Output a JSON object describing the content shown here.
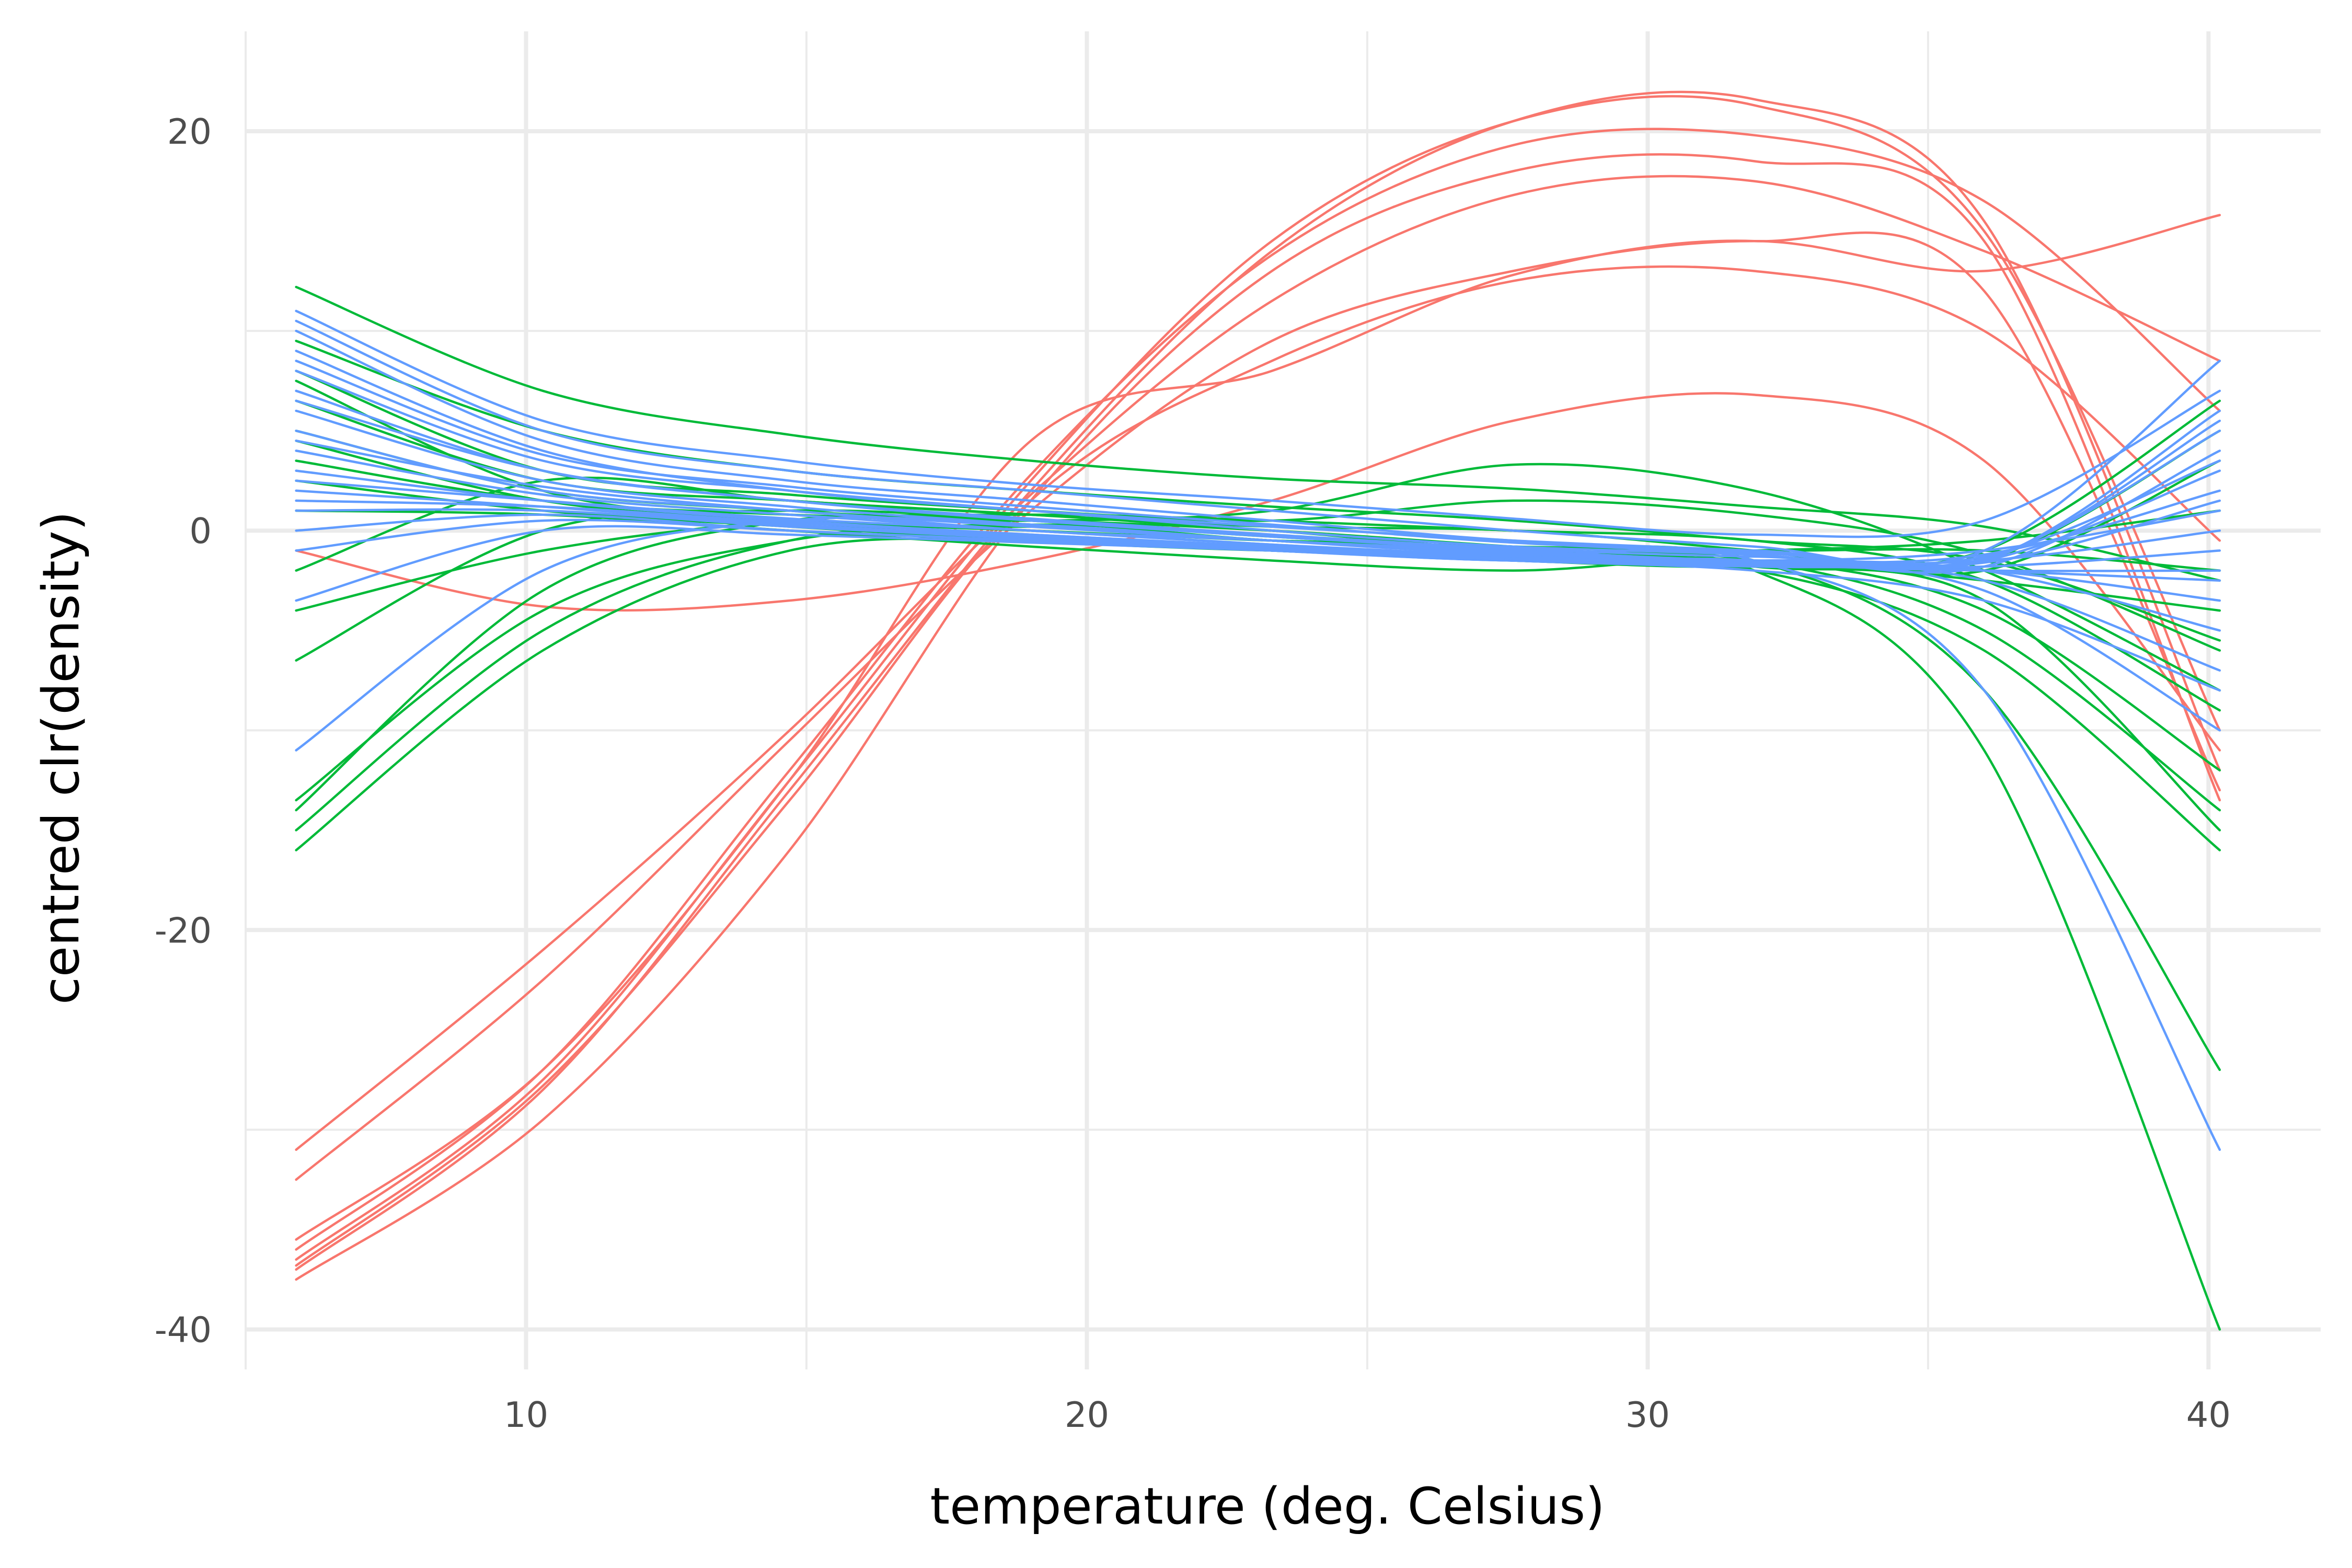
{
  "chart_data": {
    "type": "line",
    "title": "",
    "xlabel": "temperature (deg. Celsius)",
    "ylabel": "centred clr(density)",
    "xlim": [
      5,
      42
    ],
    "ylim": [
      -42,
      25
    ],
    "x_ticks": [
      10,
      20,
      30,
      40
    ],
    "y_ticks": [
      -40,
      -20,
      0,
      20
    ],
    "x_tick_labels": [
      "10",
      "20",
      "30",
      "40"
    ],
    "y_tick_labels": [
      "-40",
      "-20",
      "0",
      "20"
    ],
    "grid": true,
    "legend": "none",
    "x": [
      5.9,
      10.3,
      14.7,
      19.0,
      23.3,
      27.6,
      31.9,
      36.0,
      40.2
    ],
    "series": [
      {
        "group": "red",
        "color": "#F8766D",
        "values": [
          -37.0,
          -28.0,
          -13.0,
          2.0,
          14.0,
          20.5,
          21.6,
          15.5,
          -12.0
        ]
      },
      {
        "group": "red",
        "color": "#F8766D",
        "values": [
          -36.5,
          -27.5,
          -12.5,
          2.5,
          14.5,
          20.5,
          21.3,
          15.0,
          -10.0
        ]
      },
      {
        "group": "red",
        "color": "#F8766D",
        "values": [
          -36.0,
          -27.0,
          -12.0,
          2.8,
          13.8,
          19.3,
          19.8,
          16.5,
          6.0
        ]
      },
      {
        "group": "red",
        "color": "#F8766D",
        "values": [
          -37.5,
          -29.5,
          -16.0,
          1.5,
          13.0,
          18.0,
          18.5,
          14.5,
          -13.5
        ]
      },
      {
        "group": "red",
        "color": "#F8766D",
        "values": [
          -31.0,
          -21.0,
          -10.0,
          1.8,
          11.5,
          16.8,
          17.5,
          14.0,
          8.5
        ]
      },
      {
        "group": "red",
        "color": "#F8766D",
        "values": [
          -32.5,
          -22.5,
          -10.5,
          1.0,
          9.5,
          13.0,
          14.5,
          13.0,
          15.8
        ]
      },
      {
        "group": "red",
        "color": "#F8766D",
        "values": [
          -36.8,
          -27.8,
          -13.5,
          1.5,
          8.5,
          12.5,
          13.0,
          10.0,
          -0.5
        ]
      },
      {
        "group": "red",
        "color": "#F8766D",
        "values": [
          -35.5,
          -27.0,
          -12.5,
          4.5,
          8.0,
          12.8,
          14.5,
          12.0,
          -13.0
        ]
      },
      {
        "group": "red",
        "color": "#F8766D",
        "values": [
          -1.0,
          -3.8,
          -3.5,
          -1.5,
          1.5,
          5.5,
          6.8,
          3.5,
          -11.0
        ]
      },
      {
        "group": "green",
        "color": "#00BA38",
        "values": [
          12.2,
          7.0,
          4.8,
          3.5,
          2.6,
          2.1,
          1.2,
          0.2,
          -2.5
        ]
      },
      {
        "group": "green",
        "color": "#00BA38",
        "values": [
          9.5,
          5.0,
          3.0,
          2.0,
          1.2,
          0.5,
          -0.5,
          -1.5,
          -5.5
        ]
      },
      {
        "group": "green",
        "color": "#00BA38",
        "values": [
          8.0,
          3.0,
          1.8,
          1.0,
          0.5,
          1.5,
          0.8,
          -1.2,
          -6.0
        ]
      },
      {
        "group": "green",
        "color": "#00BA38",
        "values": [
          6.5,
          2.5,
          1.5,
          0.8,
          0.2,
          0.0,
          -1.0,
          -2.0,
          3.5
        ]
      },
      {
        "group": "green",
        "color": "#00BA38",
        "values": [
          5.0,
          2.0,
          1.0,
          0.3,
          -0.5,
          -1.0,
          -1.5,
          -1.5,
          5.0
        ]
      },
      {
        "group": "green",
        "color": "#00BA38",
        "values": [
          3.5,
          1.5,
          0.8,
          0.5,
          1.0,
          3.3,
          2.0,
          -2.0,
          -8.0
        ]
      },
      {
        "group": "green",
        "color": "#00BA38",
        "values": [
          2.5,
          1.0,
          0.2,
          -0.5,
          -1.0,
          -1.5,
          -1.8,
          -1.0,
          6.5
        ]
      },
      {
        "group": "green",
        "color": "#00BA38",
        "values": [
          1.0,
          0.8,
          0.0,
          -0.8,
          -1.5,
          -2.0,
          -1.5,
          -4.0,
          -12.0
        ]
      },
      {
        "group": "green",
        "color": "#00BA38",
        "values": [
          -2.0,
          2.5,
          1.5,
          0.8,
          0.0,
          -1.0,
          -1.5,
          -2.5,
          -4.0
        ]
      },
      {
        "group": "green",
        "color": "#00BA38",
        "values": [
          -6.5,
          0.0,
          1.0,
          0.5,
          -0.5,
          -1.0,
          -1.8,
          -3.5,
          -15.0
        ]
      },
      {
        "group": "green",
        "color": "#00BA38",
        "values": [
          -14.0,
          -3.0,
          0.5,
          0.5,
          0.0,
          -0.8,
          -1.5,
          -8.0,
          -27.0
        ]
      },
      {
        "group": "green",
        "color": "#00BA38",
        "values": [
          -15.0,
          -5.0,
          -0.5,
          0.2,
          -0.5,
          -1.2,
          -2.0,
          -11.0,
          -40.0
        ]
      },
      {
        "group": "green",
        "color": "#00BA38",
        "values": [
          -16.0,
          -6.0,
          -1.0,
          -0.5,
          -1.0,
          -1.5,
          -2.0,
          -6.0,
          -16.0
        ]
      },
      {
        "group": "green",
        "color": "#00BA38",
        "values": [
          -13.5,
          -4.0,
          -0.5,
          0.3,
          -0.3,
          -1.0,
          -1.5,
          -5.0,
          -14.0
        ]
      },
      {
        "group": "green",
        "color": "#00BA38",
        "values": [
          7.5,
          2.0,
          0.5,
          -0.5,
          -1.0,
          -1.2,
          -1.0,
          -0.5,
          1.0
        ]
      },
      {
        "group": "green",
        "color": "#00BA38",
        "values": [
          4.5,
          1.5,
          0.5,
          0.0,
          -0.5,
          -0.8,
          -1.0,
          -1.0,
          -2.0
        ]
      },
      {
        "group": "green",
        "color": "#00BA38",
        "values": [
          -4.0,
          -1.0,
          0.5,
          0.8,
          0.5,
          0.0,
          -0.5,
          -2.5,
          -9.0
        ]
      },
      {
        "group": "blue",
        "color": "#619CFF",
        "values": [
          11.0,
          5.5,
          3.5,
          2.3,
          1.5,
          0.6,
          -0.2,
          0.5,
          7.0
        ]
      },
      {
        "group": "blue",
        "color": "#619CFF",
        "values": [
          10.0,
          4.5,
          2.5,
          1.5,
          0.5,
          -0.5,
          -1.0,
          -1.0,
          8.5
        ]
      },
      {
        "group": "blue",
        "color": "#619CFF",
        "values": [
          9.0,
          4.0,
          2.0,
          1.0,
          0.2,
          -0.5,
          -1.0,
          -1.5,
          5.5
        ]
      },
      {
        "group": "blue",
        "color": "#619CFF",
        "values": [
          8.0,
          3.5,
          2.0,
          1.0,
          0.0,
          -0.8,
          -1.2,
          -1.8,
          4.0
        ]
      },
      {
        "group": "blue",
        "color": "#619CFF",
        "values": [
          7.0,
          3.0,
          1.5,
          0.5,
          -0.3,
          -1.0,
          -1.5,
          -1.5,
          3.0
        ]
      },
      {
        "group": "blue",
        "color": "#619CFF",
        "values": [
          6.0,
          2.5,
          1.2,
          0.3,
          -0.5,
          -1.0,
          -1.5,
          -1.2,
          2.0
        ]
      },
      {
        "group": "blue",
        "color": "#619CFF",
        "values": [
          5.0,
          2.0,
          1.0,
          0.0,
          -0.5,
          -1.2,
          -1.5,
          -1.0,
          1.0
        ]
      },
      {
        "group": "blue",
        "color": "#619CFF",
        "values": [
          4.0,
          1.8,
          0.8,
          0.0,
          -0.7,
          -1.3,
          -1.6,
          -1.5,
          0.0
        ]
      },
      {
        "group": "blue",
        "color": "#619CFF",
        "values": [
          3.0,
          1.5,
          0.5,
          -0.2,
          -0.8,
          -1.4,
          -1.7,
          -2.0,
          -2.0
        ]
      },
      {
        "group": "blue",
        "color": "#619CFF",
        "values": [
          2.0,
          1.2,
          0.3,
          -0.3,
          -0.9,
          -1.5,
          -1.8,
          -2.0,
          -3.5
        ]
      },
      {
        "group": "blue",
        "color": "#619CFF",
        "values": [
          1.0,
          1.0,
          0.2,
          -0.4,
          -1.0,
          -1.5,
          -1.5,
          -2.0,
          -5.0
        ]
      },
      {
        "group": "blue",
        "color": "#619CFF",
        "values": [
          0.0,
          0.8,
          0.0,
          -0.5,
          -1.0,
          -1.5,
          -1.5,
          -2.5,
          -7.0
        ]
      },
      {
        "group": "blue",
        "color": "#619CFF",
        "values": [
          -1.0,
          0.5,
          0.0,
          -0.5,
          -1.0,
          -1.5,
          -1.5,
          -3.0,
          -10.0
        ]
      },
      {
        "group": "blue",
        "color": "#619CFF",
        "values": [
          -3.5,
          0.0,
          -0.2,
          -0.6,
          -1.0,
          -1.5,
          -2.0,
          -3.5,
          -8.0
        ]
      },
      {
        "group": "blue",
        "color": "#619CFF",
        "values": [
          -11.0,
          -2.0,
          0.5,
          0.3,
          -0.5,
          -1.2,
          -1.5,
          -8.0,
          -31.0
        ]
      },
      {
        "group": "blue",
        "color": "#619CFF",
        "values": [
          10.5,
          5.0,
          3.0,
          2.0,
          1.0,
          0.0,
          -0.8,
          -1.5,
          6.0
        ]
      },
      {
        "group": "blue",
        "color": "#619CFF",
        "values": [
          8.5,
          3.8,
          2.2,
          1.2,
          0.3,
          -0.6,
          -1.1,
          -1.4,
          5.0
        ]
      },
      {
        "group": "blue",
        "color": "#619CFF",
        "values": [
          6.5,
          3.0,
          1.5,
          0.6,
          -0.2,
          -0.9,
          -1.3,
          -1.3,
          3.5
        ]
      },
      {
        "group": "blue",
        "color": "#619CFF",
        "values": [
          4.5,
          2.2,
          1.0,
          0.2,
          -0.5,
          -1.1,
          -1.5,
          -1.6,
          1.5
        ]
      },
      {
        "group": "blue",
        "color": "#619CFF",
        "values": [
          2.5,
          1.5,
          0.6,
          0.0,
          -0.7,
          -1.3,
          -1.7,
          -1.8,
          -1.0
        ]
      },
      {
        "group": "blue",
        "color": "#619CFF",
        "values": [
          1.5,
          1.2,
          0.4,
          -0.2,
          -0.8,
          -1.4,
          -1.6,
          -2.0,
          -2.5
        ]
      }
    ]
  }
}
